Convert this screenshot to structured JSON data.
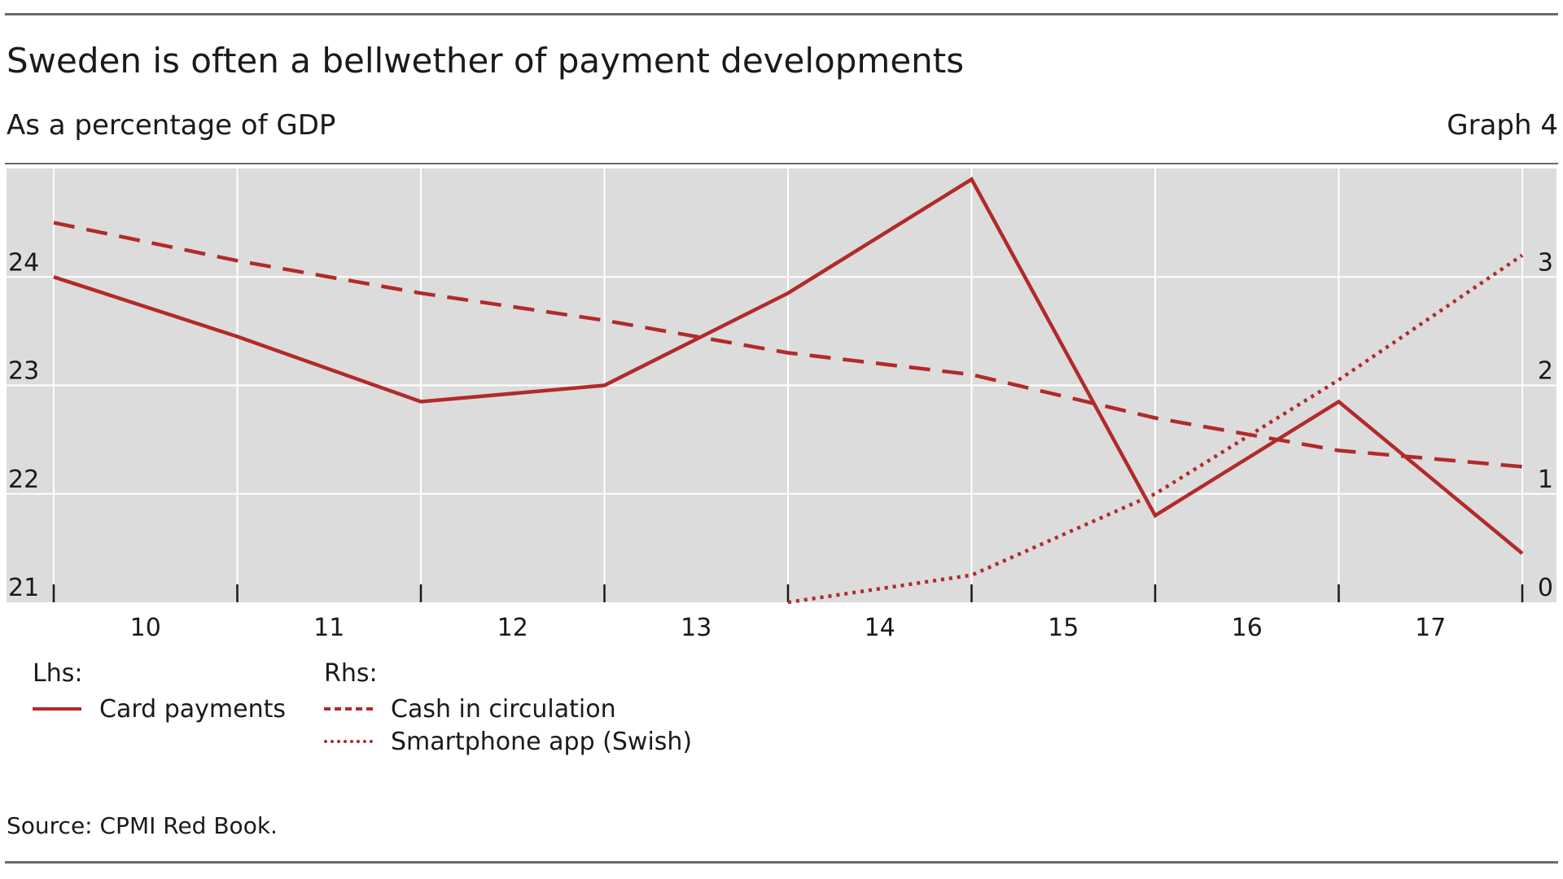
{
  "header": {
    "title": "Sweden is often a bellwether of payment developments",
    "subtitle": "As a percentage of GDP",
    "graph_number": "Graph 4"
  },
  "legend": {
    "lhs_label": "Lhs:",
    "rhs_label": "Rhs:",
    "card": "Card payments",
    "cash": "Cash in circulation",
    "swish": "Smartphone app (Swish)"
  },
  "footer": {
    "source": "Source: CPMI Red Book."
  },
  "colors": {
    "series": "#b22a2a",
    "plot_background": "#dcdcdc",
    "grid": "#ffffff"
  },
  "chart_data": {
    "type": "line",
    "title": "Sweden is often a bellwether of payment developments",
    "subtitle": "As a percentage of GDP",
    "x_tick_labels": [
      "10",
      "11",
      "12",
      "13",
      "14",
      "15",
      "16",
      "17"
    ],
    "x_range": [
      2009.5,
      2017.5
    ],
    "y_left": {
      "range": [
        21,
        25
      ],
      "ticks": [
        21,
        22,
        23,
        24
      ]
    },
    "y_right": {
      "range": [
        0,
        4
      ],
      "ticks": [
        0,
        1,
        2,
        3
      ]
    },
    "grid": true,
    "legend_position": "bottom-left",
    "series": [
      {
        "name": "Card payments",
        "axis": "left",
        "style": "solid",
        "x": [
          2009.5,
          2010.5,
          2011.5,
          2012.5,
          2013.5,
          2014.5,
          2015.5,
          2016.5,
          2017.5
        ],
        "values": [
          24.0,
          23.45,
          22.85,
          23.0,
          23.85,
          24.9,
          21.8,
          22.85,
          21.45
        ]
      },
      {
        "name": "Cash in circulation",
        "axis": "right",
        "style": "dashed",
        "x": [
          2009.5,
          2010.5,
          2011.5,
          2012.5,
          2013.5,
          2014.5,
          2015.5,
          2016.5,
          2017.5
        ],
        "values": [
          3.5,
          3.15,
          2.85,
          2.6,
          2.3,
          2.1,
          1.7,
          1.4,
          1.25
        ]
      },
      {
        "name": "Smartphone app (Swish)",
        "axis": "right",
        "style": "dotted",
        "x": [
          2013.5,
          2014.5,
          2015.5,
          2016.5,
          2017.5
        ],
        "values": [
          0.0,
          0.25,
          1.0,
          2.05,
          3.2
        ]
      }
    ]
  }
}
